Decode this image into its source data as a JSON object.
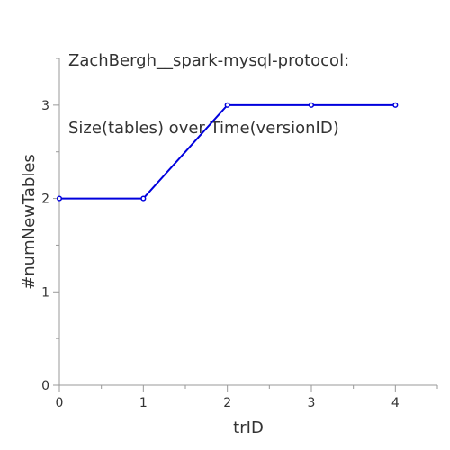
{
  "chart_data": {
    "type": "line",
    "title_lines": [
      "ZachBergh__spark-mysql-protocol:",
      "Size(tables) over Time(versionID)"
    ],
    "xlabel": "trID",
    "ylabel": "#numNewTables",
    "x": [
      0,
      1,
      2,
      3,
      4
    ],
    "series": [
      {
        "values": [
          2,
          2,
          3,
          3,
          3
        ],
        "color": "#0000dd"
      }
    ],
    "xlim": [
      0,
      4.5
    ],
    "ylim": [
      0,
      3.5
    ],
    "x_ticks": [
      0,
      1,
      2,
      3,
      4
    ],
    "y_ticks": [
      0,
      1,
      2,
      3
    ],
    "grid": false,
    "legend": "none"
  }
}
